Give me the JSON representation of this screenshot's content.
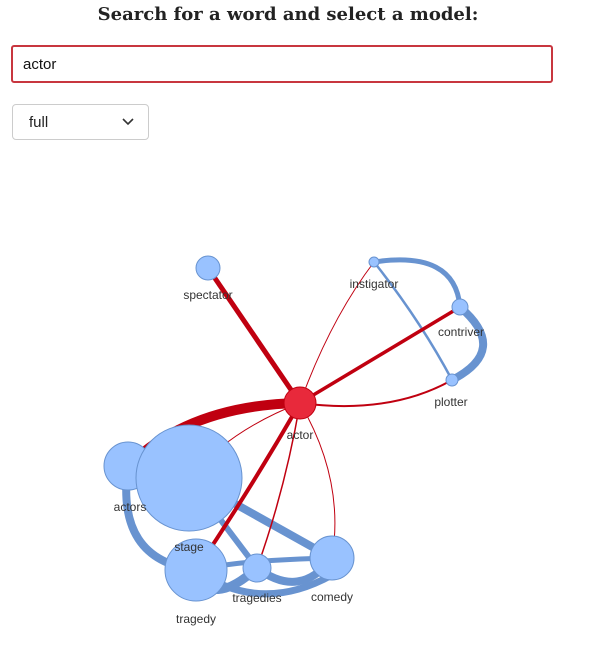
{
  "heading": "Search for a word and select a model:",
  "search": {
    "value": "actor",
    "placeholder": ""
  },
  "model_select": {
    "selected": "full",
    "icon": "chevron-down-icon"
  },
  "graph": {
    "center_color": "#e8293b",
    "node_color": "#99c2ff",
    "red_edge_color": "#c00010",
    "blue_edge_color": "#6893d0",
    "nodes": [
      {
        "id": "actor",
        "label": "actor"
      },
      {
        "id": "spectator",
        "label": "spectator"
      },
      {
        "id": "instigator",
        "label": "instigator"
      },
      {
        "id": "contriver",
        "label": "contriver"
      },
      {
        "id": "plotter",
        "label": "plotter"
      },
      {
        "id": "actors",
        "label": "actors"
      },
      {
        "id": "stage",
        "label": "stage"
      },
      {
        "id": "tragedy",
        "label": "tragedy"
      },
      {
        "id": "tragedies",
        "label": "tragedies"
      },
      {
        "id": "comedy",
        "label": "comedy"
      }
    ]
  }
}
